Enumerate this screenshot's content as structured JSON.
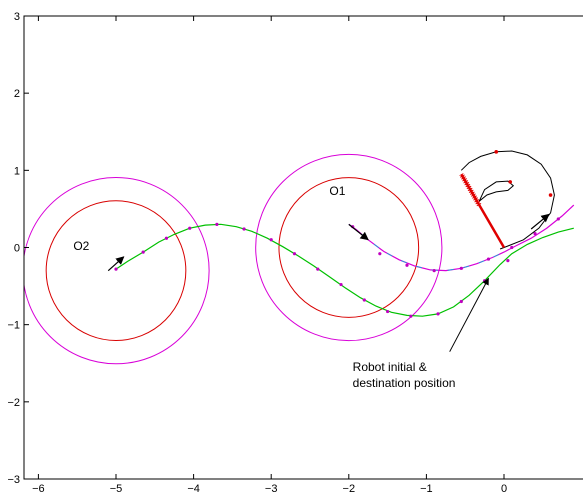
{
  "chart_data": {
    "type": "line",
    "title": "",
    "xlabel": "",
    "ylabel": "",
    "xlim": [
      -6.15,
      0.9
    ],
    "ylim": [
      -3,
      3
    ],
    "x_ticks": [
      -6,
      -5,
      -4,
      -3,
      -2,
      -1,
      0
    ],
    "x_tick_labels": [
      "−6",
      "−5",
      "−4",
      "−3",
      "−2",
      "−1",
      "0"
    ],
    "y_ticks": [
      -3,
      -2,
      -1,
      0,
      1,
      2,
      3
    ],
    "y_tick_labels": [
      "−3",
      "−2",
      "−1",
      "0",
      "1",
      "2",
      "3"
    ],
    "grid": false,
    "colors": {
      "outer_circle": "#d800d8",
      "inner_circle": "#d80000",
      "path_green": "#00c000",
      "path_magenta": "#d800d8",
      "path_cyan": "#00b8d8",
      "robot_red": "#e00000",
      "sweep_black": "#000000",
      "markers": "#c000c0",
      "arrow": "#000000"
    },
    "obstacles": [
      {
        "label": "O1",
        "cx": -2.0,
        "cy": 0.0,
        "r_inner": 0.9,
        "r_outer": 1.2,
        "label_x": -2.25,
        "label_y": 0.68
      },
      {
        "label": "O2",
        "cx": -5.0,
        "cy": -0.3,
        "r_inner": 0.9,
        "r_outer": 1.2,
        "label_x": -5.55,
        "label_y": -0.03
      }
    ],
    "series": [
      {
        "color_key": "path_green",
        "x": [
          -5.0,
          -4.85,
          -4.65,
          -4.45,
          -4.25,
          -4.05,
          -3.85,
          -3.65,
          -3.45,
          -3.25,
          -3.05,
          -2.85,
          -2.65,
          -2.45,
          -2.25,
          -2.05,
          -1.85,
          -1.65,
          -1.45,
          -1.25,
          -1.05,
          -0.85,
          -0.65,
          -0.45,
          -0.25,
          -0.05,
          0.1,
          0.3,
          0.5,
          0.7,
          0.9
        ],
        "y": [
          -0.28,
          -0.18,
          -0.06,
          0.07,
          0.17,
          0.25,
          0.29,
          0.3,
          0.27,
          0.21,
          0.12,
          0.01,
          -0.11,
          -0.24,
          -0.38,
          -0.52,
          -0.65,
          -0.76,
          -0.84,
          -0.88,
          -0.89,
          -0.86,
          -0.77,
          -0.62,
          -0.43,
          -0.22,
          -0.08,
          0.04,
          0.13,
          0.2,
          0.25
        ]
      },
      {
        "color_key": "path_magenta",
        "x": [
          -2.0,
          -1.9,
          -1.75,
          -1.55,
          -1.35,
          -1.15,
          -0.95,
          -0.75,
          -0.55,
          -0.35,
          -0.15,
          0.0,
          0.15,
          0.35,
          0.55,
          0.75,
          0.9
        ],
        "y": [
          0.3,
          0.23,
          0.1,
          -0.05,
          -0.16,
          -0.24,
          -0.29,
          -0.3,
          -0.27,
          -0.21,
          -0.13,
          -0.06,
          0.02,
          0.12,
          0.25,
          0.41,
          0.55
        ]
      }
    ],
    "markers": [
      {
        "x": -5.0,
        "y": -0.28
      },
      {
        "x": -4.65,
        "y": -0.06
      },
      {
        "x": -4.35,
        "y": 0.12
      },
      {
        "x": -4.05,
        "y": 0.25
      },
      {
        "x": -3.7,
        "y": 0.3
      },
      {
        "x": -3.35,
        "y": 0.24
      },
      {
        "x": -3.0,
        "y": 0.1
      },
      {
        "x": -2.7,
        "y": -0.08
      },
      {
        "x": -2.4,
        "y": -0.28
      },
      {
        "x": -2.1,
        "y": -0.48
      },
      {
        "x": -1.8,
        "y": -0.68
      },
      {
        "x": -1.5,
        "y": -0.83
      },
      {
        "x": -1.2,
        "y": -0.89
      },
      {
        "x": -0.85,
        "y": -0.86
      },
      {
        "x": -0.55,
        "y": -0.7
      },
      {
        "x": -0.25,
        "y": -0.43
      },
      {
        "x": 0.05,
        "y": -0.17
      },
      {
        "x": -1.95,
        "y": 0.27
      },
      {
        "x": -1.6,
        "y": -0.08
      },
      {
        "x": -1.25,
        "y": -0.23
      },
      {
        "x": -0.9,
        "y": -0.3
      },
      {
        "x": -0.55,
        "y": -0.27
      },
      {
        "x": -0.2,
        "y": -0.15
      },
      {
        "x": 0.1,
        "y": 0.0
      },
      {
        "x": 0.4,
        "y": 0.18
      },
      {
        "x": 0.7,
        "y": 0.37
      }
    ],
    "arrows": [
      {
        "x1": -5.1,
        "y1": -0.3,
        "x2": -4.9,
        "y2": -0.12
      },
      {
        "x1": -2.0,
        "y1": 0.3,
        "x2": -1.75,
        "y2": 0.1
      },
      {
        "x1": 0.35,
        "y1": 0.24,
        "x2": 0.58,
        "y2": 0.43
      }
    ],
    "robot": {
      "arm_x1": 0.0,
      "arm_y1": 0.0,
      "arm_x2": -0.55,
      "arm_y2": 0.95,
      "hatch_x1": -0.32,
      "hatch_y1": 0.55,
      "hatch_x2": -0.55,
      "hatch_y2": 0.95
    },
    "sweep_outline": {
      "x": [
        -0.55,
        -0.45,
        -0.3,
        -0.1,
        0.1,
        0.3,
        0.48,
        0.6,
        0.65,
        0.6,
        0.45,
        0.25,
        0.05,
        -0.05,
        0.0
      ],
      "y": [
        1.0,
        1.1,
        1.18,
        1.24,
        1.25,
        1.2,
        1.08,
        0.9,
        0.68,
        0.45,
        0.25,
        0.1,
        0.02,
        -0.02,
        0.0
      ]
    },
    "sweep_inner": {
      "x": [
        -0.32,
        -0.25,
        -0.1,
        0.05,
        0.12,
        0.05,
        -0.1,
        -0.22,
        -0.32
      ],
      "y": [
        0.6,
        0.75,
        0.85,
        0.86,
        0.8,
        0.74,
        0.72,
        0.68,
        0.6
      ]
    },
    "annotation": {
      "line1": "Robot initial &",
      "line2": "destination position",
      "text_x": -1.95,
      "text_y": -1.6,
      "arrow_from_x": -0.7,
      "arrow_from_y": -1.35,
      "arrow_to_x": -0.2,
      "arrow_to_y": -0.4
    }
  }
}
